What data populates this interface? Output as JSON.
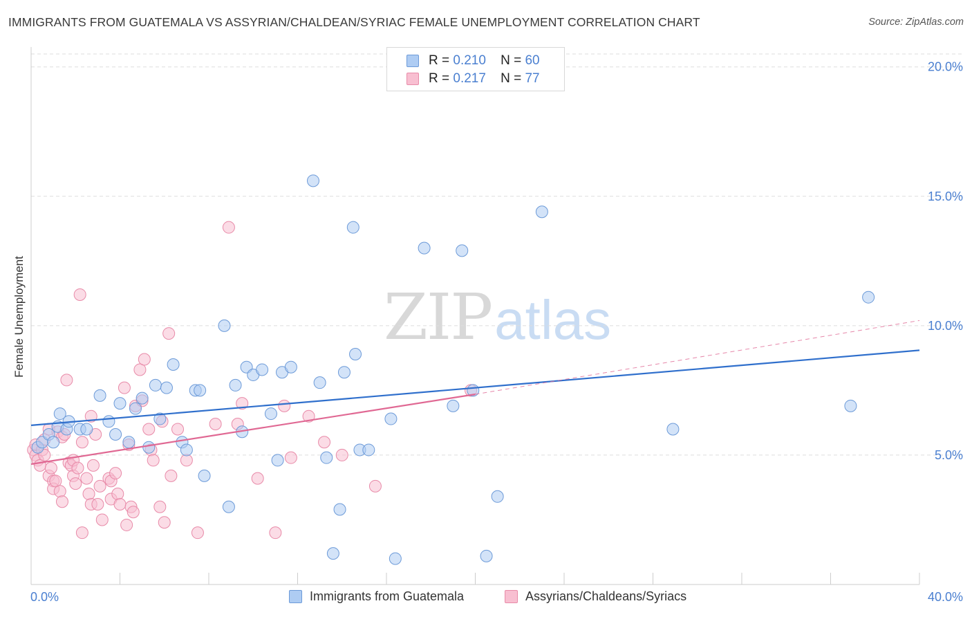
{
  "title": "IMMIGRANTS FROM GUATEMALA VS ASSYRIAN/CHALDEAN/SYRIAC FEMALE UNEMPLOYMENT CORRELATION CHART",
  "source": "Source: ZipAtlas.com",
  "watermark": {
    "zip": "ZIP",
    "atlas": "atlas"
  },
  "legend_top": [
    {
      "r_label": "R =",
      "r_value": "0.210",
      "n_label": "N =",
      "n_value": "60",
      "color": "#aeccf3"
    },
    {
      "r_label": "R =",
      "r_value": "0.217",
      "n_label": "N =",
      "n_value": "77",
      "color": "#f8bfd1"
    }
  ],
  "colors": {
    "blue_fill": "#aeccf3",
    "blue_stroke": "#6c9ad8",
    "blue_line": "#2f6fcc",
    "pink_fill": "#f8bfd1",
    "pink_stroke": "#e88aa8",
    "pink_line": "#e06893",
    "tick_label": "#4a7fd0",
    "grid": "#dddddd"
  },
  "chart_data": {
    "type": "scatter",
    "xlabel": "",
    "ylabel": "Female Unemployment",
    "xlim": [
      0,
      40
    ],
    "ylim": [
      0,
      20.5
    ],
    "x_tick_labels": [
      {
        "value": 0,
        "label": "0.0%"
      },
      {
        "value": 40,
        "label": "40.0%"
      }
    ],
    "y_tick_labels": [
      {
        "value": 5,
        "label": "5.0%"
      },
      {
        "value": 10,
        "label": "10.0%"
      },
      {
        "value": 15,
        "label": "15.0%"
      },
      {
        "value": 20,
        "label": "20.0%"
      }
    ],
    "grid": "horizontal dashed",
    "legend_position": "bottom",
    "series": [
      {
        "name": "Immigrants from Guatemala",
        "color": "#aeccf3",
        "trend": {
          "x": [
            0,
            40
          ],
          "y": [
            6.15,
            9.05
          ]
        },
        "points": [
          [
            0.3,
            5.3
          ],
          [
            0.5,
            5.5
          ],
          [
            0.8,
            5.8
          ],
          [
            1.0,
            5.5
          ],
          [
            1.2,
            6.1
          ],
          [
            1.3,
            6.6
          ],
          [
            1.6,
            6.0
          ],
          [
            1.7,
            6.3
          ],
          [
            2.2,
            6.0
          ],
          [
            2.5,
            6.0
          ],
          [
            3.1,
            7.3
          ],
          [
            3.5,
            6.3
          ],
          [
            3.8,
            5.8
          ],
          [
            4.0,
            7.0
          ],
          [
            4.4,
            5.5
          ],
          [
            4.7,
            6.8
          ],
          [
            5.0,
            7.2
          ],
          [
            5.3,
            5.3
          ],
          [
            5.6,
            7.7
          ],
          [
            5.8,
            6.4
          ],
          [
            6.1,
            7.6
          ],
          [
            6.4,
            8.5
          ],
          [
            6.8,
            5.5
          ],
          [
            7.0,
            5.2
          ],
          [
            7.4,
            7.5
          ],
          [
            7.6,
            7.5
          ],
          [
            7.8,
            4.2
          ],
          [
            8.7,
            10.0
          ],
          [
            8.9,
            3.0
          ],
          [
            9.2,
            7.7
          ],
          [
            9.5,
            5.9
          ],
          [
            9.7,
            8.4
          ],
          [
            10.0,
            8.1
          ],
          [
            10.4,
            8.3
          ],
          [
            10.8,
            6.6
          ],
          [
            11.1,
            4.8
          ],
          [
            11.3,
            8.2
          ],
          [
            11.7,
            8.4
          ],
          [
            12.7,
            15.6
          ],
          [
            13.0,
            7.8
          ],
          [
            13.3,
            4.9
          ],
          [
            13.6,
            1.2
          ],
          [
            13.9,
            2.9
          ],
          [
            14.1,
            8.2
          ],
          [
            14.5,
            13.8
          ],
          [
            14.6,
            8.9
          ],
          [
            14.8,
            5.2
          ],
          [
            15.2,
            5.2
          ],
          [
            16.2,
            6.4
          ],
          [
            16.4,
            1.0
          ],
          [
            17.7,
            13.0
          ],
          [
            19.0,
            6.9
          ],
          [
            19.4,
            12.9
          ],
          [
            19.9,
            7.5
          ],
          [
            20.5,
            1.1
          ],
          [
            21.0,
            3.4
          ],
          [
            23.0,
            14.4
          ],
          [
            28.9,
            6.0
          ],
          [
            36.9,
            6.9
          ],
          [
            37.7,
            11.1
          ]
        ]
      },
      {
        "name": "Assyrians/Chaldeans/Syriacs",
        "color": "#f8bfd1",
        "trend": {
          "x": [
            0,
            20
          ],
          "y": [
            4.65,
            7.35
          ]
        },
        "trend_extension": {
          "x": [
            20,
            40
          ],
          "y": [
            7.35,
            10.2
          ]
        },
        "points": [
          [
            0.1,
            5.2
          ],
          [
            0.2,
            5.0
          ],
          [
            0.2,
            5.4
          ],
          [
            0.3,
            4.8
          ],
          [
            0.4,
            4.6
          ],
          [
            0.5,
            5.2
          ],
          [
            0.6,
            5.0
          ],
          [
            0.6,
            5.6
          ],
          [
            0.8,
            4.2
          ],
          [
            0.8,
            6.0
          ],
          [
            0.9,
            4.5
          ],
          [
            1.0,
            4.0
          ],
          [
            1.0,
            3.7
          ],
          [
            1.1,
            4.0
          ],
          [
            1.2,
            5.9
          ],
          [
            1.3,
            3.6
          ],
          [
            1.4,
            3.2
          ],
          [
            1.4,
            5.7
          ],
          [
            1.5,
            5.8
          ],
          [
            1.6,
            7.9
          ],
          [
            1.7,
            4.7
          ],
          [
            1.8,
            4.6
          ],
          [
            1.9,
            4.8
          ],
          [
            1.9,
            4.2
          ],
          [
            2.0,
            3.9
          ],
          [
            2.1,
            4.5
          ],
          [
            2.2,
            11.2
          ],
          [
            2.3,
            2.0
          ],
          [
            2.3,
            5.5
          ],
          [
            2.5,
            4.1
          ],
          [
            2.6,
            3.5
          ],
          [
            2.7,
            6.5
          ],
          [
            2.7,
            3.1
          ],
          [
            2.8,
            4.6
          ],
          [
            2.9,
            5.8
          ],
          [
            3.0,
            3.1
          ],
          [
            3.1,
            3.8
          ],
          [
            3.2,
            2.5
          ],
          [
            3.5,
            4.1
          ],
          [
            3.6,
            4.0
          ],
          [
            3.6,
            3.3
          ],
          [
            3.8,
            4.3
          ],
          [
            3.9,
            3.5
          ],
          [
            4.0,
            3.1
          ],
          [
            4.2,
            7.6
          ],
          [
            4.3,
            2.3
          ],
          [
            4.4,
            5.4
          ],
          [
            4.5,
            3.0
          ],
          [
            4.6,
            2.8
          ],
          [
            4.7,
            6.9
          ],
          [
            4.9,
            8.3
          ],
          [
            5.0,
            7.1
          ],
          [
            5.1,
            8.7
          ],
          [
            5.3,
            6.0
          ],
          [
            5.4,
            5.2
          ],
          [
            5.5,
            4.8
          ],
          [
            5.8,
            3.0
          ],
          [
            5.9,
            6.3
          ],
          [
            6.0,
            2.4
          ],
          [
            6.2,
            9.7
          ],
          [
            6.3,
            4.2
          ],
          [
            6.6,
            6.0
          ],
          [
            7.0,
            4.8
          ],
          [
            7.5,
            2.0
          ],
          [
            8.3,
            6.2
          ],
          [
            8.9,
            13.8
          ],
          [
            9.3,
            6.2
          ],
          [
            9.5,
            7.0
          ],
          [
            10.2,
            4.1
          ],
          [
            11.0,
            2.0
          ],
          [
            11.4,
            6.9
          ],
          [
            11.7,
            4.9
          ],
          [
            12.5,
            6.5
          ],
          [
            13.2,
            5.5
          ],
          [
            14.0,
            5.0
          ],
          [
            15.5,
            3.8
          ],
          [
            19.8,
            7.5
          ]
        ]
      }
    ]
  }
}
